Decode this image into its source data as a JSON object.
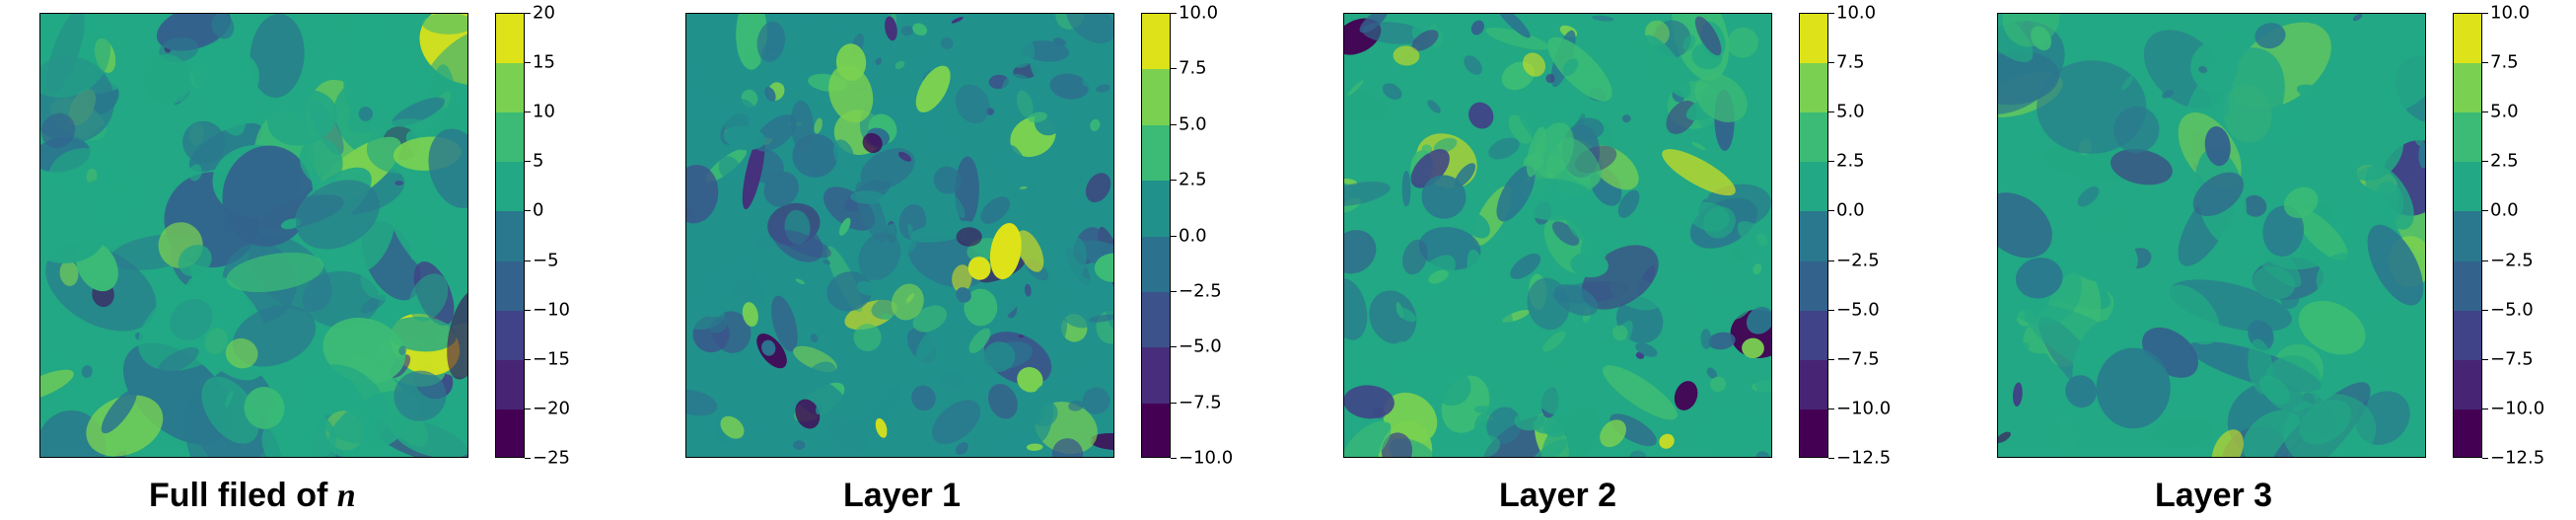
{
  "chart_data": [
    {
      "type": "heatmap",
      "title_text": "Full filed of ",
      "title_var": "n",
      "colorbar": {
        "ticks": [
          20,
          15,
          10,
          5,
          0,
          -5,
          -10,
          -15,
          -20,
          -25
        ],
        "tick_labels": [
          "20",
          "15",
          "10",
          "5",
          "0",
          "−5",
          "−10",
          "−15",
          "−20",
          "−25"
        ],
        "colors": [
          "#dde318",
          "#7ad151",
          "#3bbb75",
          "#22a884",
          "#2a788e",
          "#33638d",
          "#404387",
          "#482475",
          "#440154"
        ]
      }
    },
    {
      "type": "heatmap",
      "title_text": "Layer 1",
      "colorbar": {
        "ticks": [
          10.0,
          7.5,
          5.0,
          2.5,
          0.0,
          -2.5,
          -5.0,
          -7.5,
          -10.0
        ],
        "tick_labels": [
          "10.0",
          "7.5",
          "5.0",
          "2.5",
          "0.0",
          "−2.5",
          "−5.0",
          "−7.5",
          "−10.0"
        ],
        "colors": [
          "#dde318",
          "#7ad151",
          "#3bbb75",
          "#21918c",
          "#2c728e",
          "#3b528b",
          "#472d7b",
          "#440154"
        ]
      }
    },
    {
      "type": "heatmap",
      "title_text": "Layer 2",
      "colorbar": {
        "ticks": [
          10.0,
          7.5,
          5.0,
          2.5,
          0.0,
          -2.5,
          -5.0,
          -7.5,
          -10.0,
          -12.5
        ],
        "tick_labels": [
          "10.0",
          "7.5",
          "5.0",
          "2.5",
          "0.0",
          "−2.5",
          "−5.0",
          "−7.5",
          "−10.0",
          "−12.5"
        ],
        "colors": [
          "#dde318",
          "#7ad151",
          "#3bbb75",
          "#22a884",
          "#2a788e",
          "#33638d",
          "#404387",
          "#482475",
          "#440154"
        ]
      }
    },
    {
      "type": "heatmap",
      "title_text": "Layer 3",
      "colorbar": {
        "ticks": [
          10.0,
          7.5,
          5.0,
          2.5,
          0.0,
          -2.5,
          -5.0,
          -7.5,
          -10.0,
          -12.5
        ],
        "tick_labels": [
          "10.0",
          "7.5",
          "5.0",
          "2.5",
          "0.0",
          "−2.5",
          "−5.0",
          "−7.5",
          "−10.0",
          "−12.5"
        ],
        "colors": [
          "#dde318",
          "#7ad151",
          "#3bbb75",
          "#22a884",
          "#2a788e",
          "#33638d",
          "#404387",
          "#482475",
          "#440154"
        ]
      }
    }
  ]
}
